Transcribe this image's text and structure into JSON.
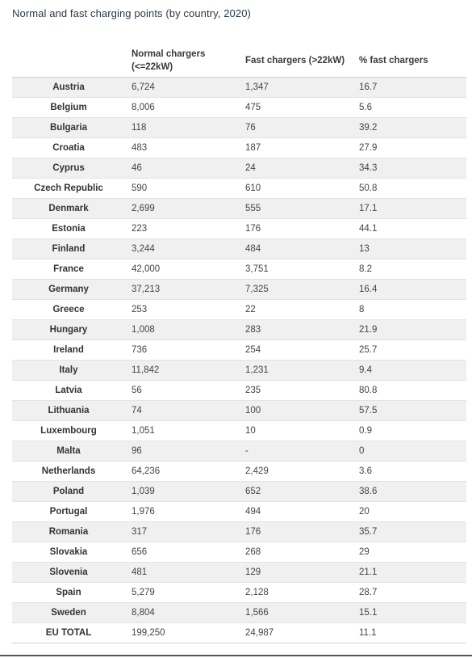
{
  "title": "Normal and fast charging points (by country, 2020)",
  "table": {
    "headers": [
      "",
      "Normal chargers (<=22kW)",
      "Fast chargers (>22kW)",
      "% fast chargers"
    ],
    "rows": [
      [
        "Austria",
        "6,724",
        "1,347",
        "16.7"
      ],
      [
        "Belgium",
        "8,006",
        "475",
        "5.6"
      ],
      [
        "Bulgaria",
        "118",
        "76",
        "39.2"
      ],
      [
        "Croatia",
        "483",
        "187",
        "27.9"
      ],
      [
        "Cyprus",
        "46",
        "24",
        "34.3"
      ],
      [
        "Czech Republic",
        "590",
        "610",
        "50.8"
      ],
      [
        "Denmark",
        "2,699",
        "555",
        "17.1"
      ],
      [
        "Estonia",
        "223",
        "176",
        "44.1"
      ],
      [
        "Finland",
        "3,244",
        "484",
        "13"
      ],
      [
        "France",
        "42,000",
        "3,751",
        "8.2"
      ],
      [
        "Germany",
        "37,213",
        "7,325",
        "16.4"
      ],
      [
        "Greece",
        "253",
        "22",
        "8"
      ],
      [
        "Hungary",
        "1,008",
        "283",
        "21.9"
      ],
      [
        "Ireland",
        "736",
        "254",
        "25.7"
      ],
      [
        "Italy",
        "11,842",
        "1,231",
        "9.4"
      ],
      [
        "Latvia",
        "56",
        "235",
        "80.8"
      ],
      [
        "Lithuania",
        "74",
        "100",
        "57.5"
      ],
      [
        "Luxembourg",
        "1,051",
        "10",
        "0.9"
      ],
      [
        "Malta",
        "96",
        "-",
        "0"
      ],
      [
        "Netherlands",
        "64,236",
        "2,429",
        "3.6"
      ],
      [
        "Poland",
        "1,039",
        "652",
        "38.6"
      ],
      [
        "Portugal",
        "1,976",
        "494",
        "20"
      ],
      [
        "Romania",
        "317",
        "176",
        "35.7"
      ],
      [
        "Slovakia",
        "656",
        "268",
        "29"
      ],
      [
        "Slovenia",
        "481",
        "129",
        "21.1"
      ],
      [
        "Spain",
        "5,279",
        "2,128",
        "28.7"
      ],
      [
        "Sweden",
        "8,804",
        "1,566",
        "15.1"
      ],
      [
        "EU TOTAL",
        "199,250",
        "24,987",
        "11.1"
      ]
    ]
  },
  "colors": {
    "row_shade": "#f0f0f0",
    "title_text": "#2a3a48"
  }
}
